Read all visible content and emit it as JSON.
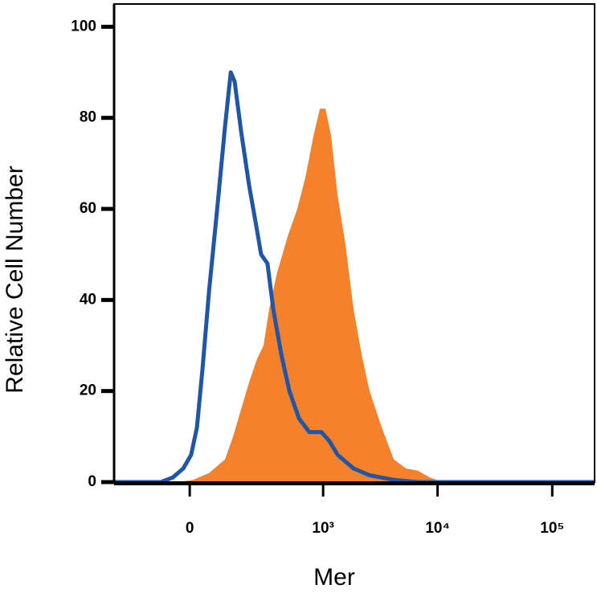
{
  "chart_data": {
    "type": "histogram-overlay",
    "x_label": "Mer",
    "y_label": "Relative Cell Number",
    "xscale": "biexponential",
    "xlim": [
      -300,
      234000
    ],
    "xticks": [
      0,
      {
        "value": 1000,
        "label": "10³"
      },
      {
        "value": 10000,
        "label": "10⁴"
      },
      {
        "value": 100000,
        "label": "10⁵"
      }
    ],
    "ylim": [
      0,
      105
    ],
    "yticks": [
      0,
      20,
      40,
      60,
      80,
      100
    ],
    "series": [
      {
        "type": "area",
        "color": "#f5822a",
        "x": [
          -300,
          -36,
          9,
          55,
          106,
          136,
          169,
          207,
          248,
          288,
          326,
          387,
          484,
          590,
          698,
          821,
          936,
          1049,
          1176,
          1339,
          1575,
          1849,
          2177,
          2553,
          3259,
          4154,
          5291,
          6735,
          8572,
          10925,
          234000
        ],
        "values": [
          0,
          0,
          0.5,
          2,
          5,
          10,
          16,
          22,
          27,
          30,
          38,
          46,
          54,
          60,
          67,
          76,
          82,
          82,
          76,
          63,
          52,
          38,
          28,
          20,
          12,
          5,
          3,
          2.5,
          1,
          0,
          0
        ]
      },
      {
        "type": "line",
        "color": "#1f56a8",
        "x": [
          -300,
          -85,
          -48,
          -18,
          4,
          20,
          36,
          55,
          80,
          106,
          127,
          142,
          169,
          207,
          241,
          273,
          314,
          356,
          423,
          501,
          611,
          756,
          966,
          1137,
          1339,
          1849,
          2553,
          4154,
          6735,
          234000
        ],
        "values": [
          0,
          0,
          1,
          3,
          6,
          12,
          25,
          42,
          60,
          78,
          90,
          88,
          77,
          65,
          57,
          50,
          48,
          38,
          28,
          20,
          14,
          11,
          11,
          9,
          6,
          3,
          1.5,
          0.5,
          0,
          0
        ]
      }
    ]
  }
}
